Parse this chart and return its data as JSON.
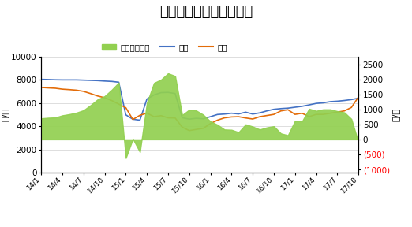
{
  "title": "山东地炼汽柴油价格走势",
  "ylabel_left": "元/吨",
  "ylabel_right": "元/吨",
  "left_ylim": [
    0,
    10000
  ],
  "right_ylim": [
    -1100,
    2750
  ],
  "left_yticks": [
    0,
    2000,
    4000,
    6000,
    8000,
    10000
  ],
  "right_yticks": [
    -1000,
    -500,
    0,
    500,
    1000,
    1500,
    2000,
    2500
  ],
  "right_ytick_labels": [
    "(1000)",
    "(500)",
    "0",
    "500",
    "1000",
    "1500",
    "2000",
    "2500"
  ],
  "xtick_labels": [
    "14/1",
    "14/4",
    "14/7",
    "14/10",
    "15/1",
    "15/4",
    "15/7",
    "15/10",
    "16/1",
    "16/4",
    "16/7",
    "16/10",
    "17/1",
    "17/4",
    "17/7",
    "17/10"
  ],
  "gasoline_color": "#4472c4",
  "diesel_color": "#e36c09",
  "spread_fill_color": "#92d050",
  "legend_labels": [
    "价差（右轴）",
    "汽油",
    "柴油"
  ],
  "background_color": "#ffffff",
  "title_fontsize": 13,
  "axis_fontsize": 8,
  "tick_fontsize": 7.5,
  "gasoline_data": [
    8050,
    8030,
    8010,
    8000,
    8000,
    8000,
    7980,
    7960,
    7940,
    7900,
    7870,
    7800,
    4980,
    4600,
    4520,
    6350,
    6700,
    6900,
    6920,
    6820,
    4730,
    4610,
    4680,
    4640,
    4820,
    5010,
    5050,
    5120,
    5060,
    5210,
    5050,
    5150,
    5320,
    5460,
    5520,
    5560,
    5640,
    5720,
    5840,
    5970,
    6020,
    6120,
    6160,
    6220,
    6300,
    6420
  ],
  "diesel_data": [
    7350,
    7310,
    7280,
    7200,
    7160,
    7110,
    7010,
    6820,
    6610,
    6460,
    6220,
    5910,
    5600,
    4580,
    4940,
    5130,
    4820,
    4910,
    4720,
    4710,
    3920,
    3620,
    3720,
    3820,
    4220,
    4520,
    4720,
    4800,
    4820,
    4710,
    4620,
    4820,
    4920,
    5020,
    5320,
    5420,
    5020,
    5120,
    4820,
    5020,
    5020,
    5120,
    5220,
    5320,
    5620,
    6520
  ],
  "neg_color": "#ff0000",
  "pos_color": "#000000"
}
